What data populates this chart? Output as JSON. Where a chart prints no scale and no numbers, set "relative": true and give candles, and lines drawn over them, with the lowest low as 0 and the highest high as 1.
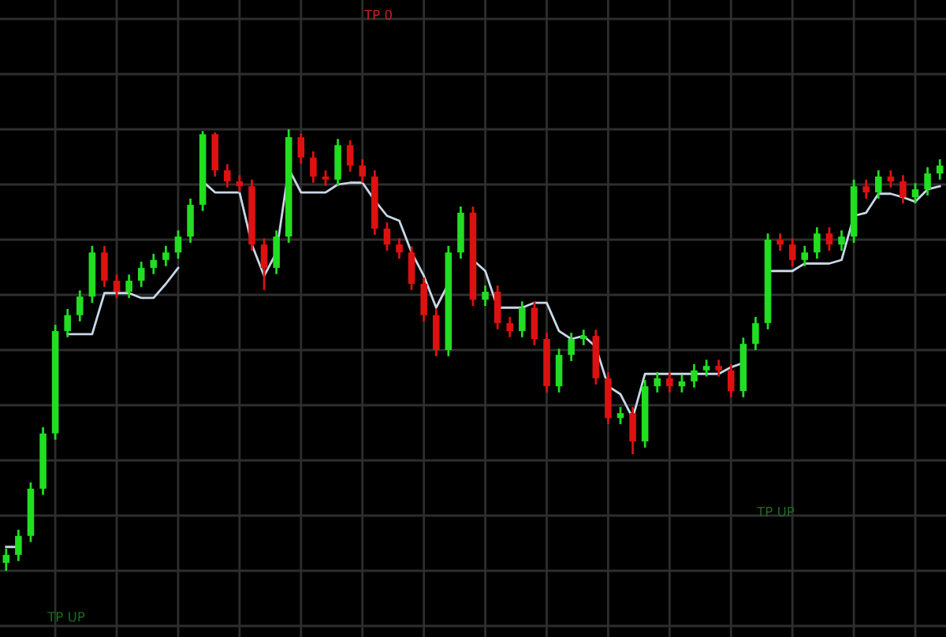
{
  "chart_data": {
    "type": "candlestick",
    "relative": true,
    "grid": true,
    "colors": [
      "#22dd22",
      "#22dd22",
      "#22dd22",
      "#22dd22",
      "#22dd22",
      "#22dd22",
      "#22dd22",
      "#22dd22",
      "#dd1111",
      "#dd1111",
      "#22dd22",
      "#22dd22",
      "#22dd22",
      "#22dd22",
      "#22dd22",
      "#22dd22",
      "#22dd22",
      "#dd1111",
      "#dd1111",
      "#dd1111",
      "#dd1111",
      "#dd1111",
      "#22dd22",
      "#22dd22",
      "#dd1111",
      "#dd1111",
      "#dd1111",
      "#22dd22",
      "#dd1111",
      "#dd1111",
      "#dd1111",
      "#dd1111",
      "#dd1111",
      "#dd1111",
      "#dd1111",
      "#dd1111",
      "#22dd22",
      "#22dd22",
      "#dd1111",
      "#22dd22",
      "#dd1111",
      "#dd1111",
      "#22dd22",
      "#dd1111",
      "#dd1111",
      "#22dd22",
      "#22dd22",
      "#22dd22",
      "#dd1111",
      "#dd1111",
      "#22dd22",
      "#dd1111",
      "#22dd22",
      "#22dd22",
      "#dd1111",
      "#22dd22",
      "#22dd22",
      "#22dd22",
      "#dd1111",
      "#dd1111",
      "#22dd22",
      "#22dd22",
      "#22dd22",
      "#dd1111",
      "#dd1111",
      "#22dd22",
      "#22dd22",
      "#dd1111",
      "#22dd22",
      "#22dd22",
      "#dd1111",
      "#22dd22",
      "#dd1111",
      "#dd1111",
      "#22dd22",
      "#22dd22",
      "#22dd22"
    ],
    "annotations": [
      "TP 0",
      "TP UP",
      "TP UP"
    ],
    "categories": [
      null,
      null,
      null,
      null,
      null,
      null,
      null,
      null,
      null,
      null,
      null,
      null,
      null,
      null,
      null,
      null,
      null,
      null,
      null,
      null,
      null,
      null,
      null,
      null,
      null,
      null,
      null,
      null,
      null,
      null,
      null,
      null,
      null,
      null,
      null,
      null,
      null,
      null,
      null,
      null,
      null,
      null,
      null,
      null,
      null,
      null,
      null,
      null,
      null,
      null,
      null,
      null,
      null,
      null,
      null,
      null,
      null,
      null,
      null,
      null,
      null,
      null,
      null,
      null,
      null,
      null,
      null,
      null,
      null,
      null,
      null,
      null,
      null,
      null,
      null,
      null,
      null
    ],
    "ohlc": [
      [
        0.018,
        0.05,
        0.0,
        0.036
      ],
      [
        0.036,
        0.093,
        0.022,
        0.079
      ],
      [
        0.079,
        0.2,
        0.065,
        0.186
      ],
      [
        0.186,
        0.325,
        0.172,
        0.311
      ],
      [
        0.311,
        0.557,
        0.297,
        0.543
      ],
      [
        0.543,
        0.593,
        0.529,
        0.579
      ],
      [
        0.579,
        0.635,
        0.565,
        0.621
      ],
      [
        0.621,
        0.736,
        0.607,
        0.721
      ],
      [
        0.721,
        0.736,
        0.643,
        0.657
      ],
      [
        0.657,
        0.671,
        0.618,
        0.632
      ],
      [
        0.632,
        0.671,
        0.618,
        0.657
      ],
      [
        0.657,
        0.7,
        0.643,
        0.686
      ],
      [
        0.686,
        0.718,
        0.672,
        0.704
      ],
      [
        0.704,
        0.736,
        0.69,
        0.721
      ],
      [
        0.721,
        0.771,
        0.707,
        0.757
      ],
      [
        0.757,
        0.843,
        0.743,
        0.829
      ],
      [
        0.829,
        0.996,
        0.815,
        0.989
      ],
      [
        0.989,
        0.993,
        0.893,
        0.907
      ],
      [
        0.907,
        0.921,
        0.868,
        0.882
      ],
      [
        0.882,
        0.896,
        0.857,
        0.871
      ],
      [
        0.871,
        0.886,
        0.725,
        0.739
      ],
      [
        0.739,
        0.753,
        0.636,
        0.686
      ],
      [
        0.686,
        0.771,
        0.672,
        0.757
      ],
      [
        0.757,
        1.0,
        0.743,
        0.982
      ],
      [
        0.982,
        0.99,
        0.922,
        0.936
      ],
      [
        0.936,
        0.95,
        0.879,
        0.893
      ],
      [
        0.893,
        0.907,
        0.872,
        0.886
      ],
      [
        0.886,
        0.978,
        0.872,
        0.964
      ],
      [
        0.964,
        0.975,
        0.904,
        0.918
      ],
      [
        0.918,
        0.932,
        0.879,
        0.893
      ],
      [
        0.893,
        0.907,
        0.761,
        0.775
      ],
      [
        0.775,
        0.789,
        0.725,
        0.739
      ],
      [
        0.739,
        0.753,
        0.707,
        0.721
      ],
      [
        0.721,
        0.735,
        0.636,
        0.65
      ],
      [
        0.65,
        0.664,
        0.565,
        0.579
      ],
      [
        0.579,
        0.593,
        0.486,
        0.5
      ],
      [
        0.5,
        0.736,
        0.486,
        0.721
      ],
      [
        0.721,
        0.825,
        0.707,
        0.811
      ],
      [
        0.811,
        0.825,
        0.6,
        0.614
      ],
      [
        0.614,
        0.646,
        0.6,
        0.632
      ],
      [
        0.632,
        0.646,
        0.547,
        0.561
      ],
      [
        0.561,
        0.575,
        0.529,
        0.543
      ],
      [
        0.543,
        0.61,
        0.529,
        0.596
      ],
      [
        0.596,
        0.61,
        0.511,
        0.525
      ],
      [
        0.525,
        0.539,
        0.404,
        0.418
      ],
      [
        0.418,
        0.503,
        0.404,
        0.489
      ],
      [
        0.489,
        0.539,
        0.475,
        0.525
      ],
      [
        0.525,
        0.546,
        0.511,
        0.532
      ],
      [
        0.532,
        0.546,
        0.422,
        0.436
      ],
      [
        0.436,
        0.45,
        0.332,
        0.346
      ],
      [
        0.346,
        0.371,
        0.332,
        0.357
      ],
      [
        0.357,
        0.371,
        0.264,
        0.293
      ],
      [
        0.293,
        0.432,
        0.279,
        0.418
      ],
      [
        0.418,
        0.45,
        0.404,
        0.436
      ],
      [
        0.436,
        0.45,
        0.404,
        0.418
      ],
      [
        0.418,
        0.443,
        0.404,
        0.429
      ],
      [
        0.429,
        0.468,
        0.415,
        0.454
      ],
      [
        0.454,
        0.478,
        0.44,
        0.464
      ],
      [
        0.464,
        0.478,
        0.44,
        0.454
      ],
      [
        0.454,
        0.468,
        0.393,
        0.407
      ],
      [
        0.407,
        0.528,
        0.393,
        0.514
      ],
      [
        0.514,
        0.575,
        0.5,
        0.561
      ],
      [
        0.561,
        0.764,
        0.547,
        0.75
      ],
      [
        0.75,
        0.764,
        0.725,
        0.739
      ],
      [
        0.739,
        0.753,
        0.69,
        0.704
      ],
      [
        0.704,
        0.736,
        0.69,
        0.721
      ],
      [
        0.721,
        0.778,
        0.707,
        0.764
      ],
      [
        0.764,
        0.778,
        0.725,
        0.739
      ],
      [
        0.739,
        0.771,
        0.725,
        0.757
      ],
      [
        0.757,
        0.886,
        0.743,
        0.871
      ],
      [
        0.871,
        0.886,
        0.843,
        0.857
      ],
      [
        0.857,
        0.907,
        0.843,
        0.893
      ],
      [
        0.893,
        0.907,
        0.868,
        0.882
      ],
      [
        0.882,
        0.896,
        0.832,
        0.846
      ],
      [
        0.846,
        0.878,
        0.832,
        0.864
      ],
      [
        0.864,
        0.914,
        0.85,
        0.9
      ],
      [
        0.9,
        0.932,
        0.886,
        0.918
      ]
    ],
    "series": [
      {
        "type": "line",
        "color": "#c8d8e8",
        "values": [
          0.054,
          0.054,
          null,
          null,
          null,
          0.536,
          0.536,
          0.536,
          0.629,
          0.629,
          0.629,
          0.618,
          0.618,
          0.65,
          0.686,
          null,
          0.882,
          0.857,
          0.857,
          0.857,
          0.739,
          0.668,
          0.721,
          0.911,
          0.857,
          0.857,
          0.857,
          0.875,
          0.879,
          0.879,
          0.839,
          0.804,
          0.793,
          0.721,
          0.668,
          0.596,
          0.65,
          null,
          0.704,
          0.679,
          0.596,
          0.596,
          0.596,
          0.607,
          0.607,
          0.543,
          0.525,
          0.532,
          0.507,
          0.418,
          0.4,
          0.346,
          0.446,
          0.446,
          0.446,
          0.446,
          0.446,
          0.446,
          0.446,
          0.461,
          0.471,
          null,
          0.679,
          0.679,
          0.679,
          0.696,
          0.696,
          0.696,
          0.704,
          0.804,
          0.811,
          0.854,
          0.854,
          0.846,
          0.836,
          0.864,
          0.871
        ]
      }
    ]
  }
}
